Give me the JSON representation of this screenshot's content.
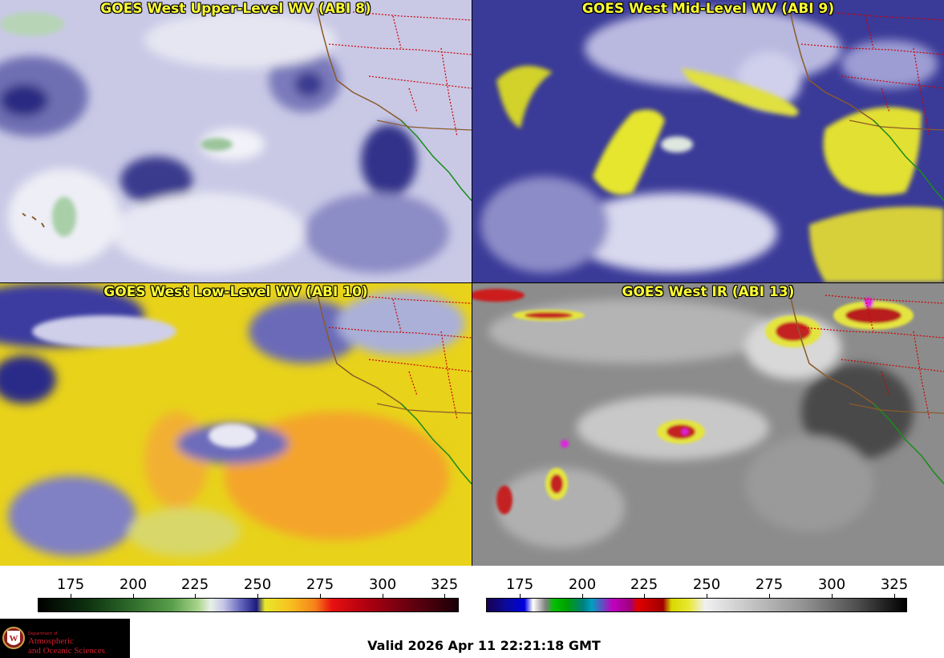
{
  "panels": [
    {
      "title": "GOES West Upper-Level WV (ABI 8)"
    },
    {
      "title": "GOES West Mid-Level WV (ABI 9)"
    },
    {
      "title": "GOES West Low-Level WV (ABI 10)"
    },
    {
      "title": "GOES West IR (ABI 13)"
    }
  ],
  "colorbars": [
    {
      "name": "water-vapor-colorbar",
      "ticks": [
        "175",
        "200",
        "225",
        "250",
        "275",
        "300",
        "325"
      ]
    },
    {
      "name": "ir-colorbar",
      "ticks": [
        "175",
        "200",
        "225",
        "250",
        "275",
        "300",
        "325"
      ]
    }
  ],
  "logo": {
    "dept": "Department of",
    "line1": "Atmospheric",
    "line2": "and Oceanic Sciences",
    "seal_letter": "W"
  },
  "valid_time": "Valid 2026 Apr 11 22:21:18 GMT",
  "colors": {
    "title_text": "#ffff33",
    "state_lines": "#cc0000",
    "coast_lines": "#8b5a2b",
    "mexico_lines": "#1a8c1a"
  }
}
